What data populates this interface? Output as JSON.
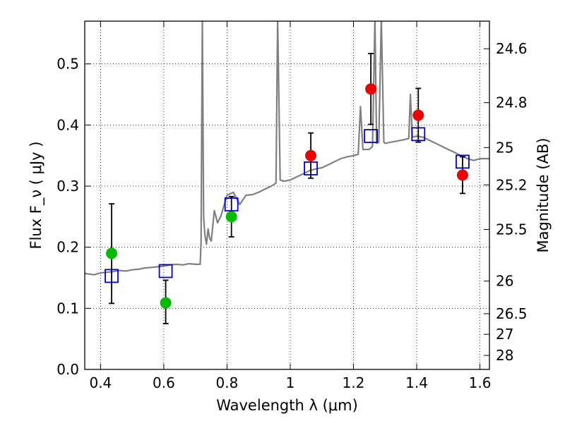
{
  "chart_data": {
    "type": "scatter",
    "xlabel": "Wavelength  λ (μm)",
    "ylabel": "Flux  F_ν  ( μJy )",
    "y2label": "Magnitude (AB)",
    "xlim": [
      0.35,
      1.63
    ],
    "ylim": [
      0.0,
      0.57
    ],
    "grid": true,
    "x_ticks": [
      "0.4",
      "0.6",
      "0.8",
      "1",
      "1.2",
      "1.4",
      "1.6"
    ],
    "y_ticks": [
      "0.0",
      "0.1",
      "0.2",
      "0.3",
      "0.4",
      "0.5"
    ],
    "y2_ticks": [
      "24.6",
      "24.8",
      "25",
      "25.2",
      "25.5",
      "26",
      "26.5",
      "27",
      "28"
    ],
    "colors": {
      "model_spectrum": "#808080",
      "observed_green": "#00bb00",
      "observed_red": "#ee0000",
      "model_photometry": "#0000cc",
      "error_bars": "#000000"
    },
    "series": [
      {
        "kind": "observed",
        "points": [
          {
            "x": 0.435,
            "y": 0.19,
            "yerr_low": 0.108,
            "yerr_high": 0.271,
            "color": "#00bb00"
          },
          {
            "x": 0.606,
            "y": 0.109,
            "yerr_low": 0.075,
            "yerr_high": 0.146,
            "color": "#00bb00"
          },
          {
            "x": 0.814,
            "y": 0.25,
            "yerr_low": 0.217,
            "yerr_high": 0.283,
            "color": "#00bb00"
          },
          {
            "x": 1.065,
            "y": 0.35,
            "yerr_low": 0.313,
            "yerr_high": 0.387,
            "color": "#ee0000"
          },
          {
            "x": 1.255,
            "y": 0.459,
            "yerr_low": 0.401,
            "yerr_high": 0.517,
            "color": "#ee0000"
          },
          {
            "x": 1.405,
            "y": 0.416,
            "yerr_low": 0.372,
            "yerr_high": 0.46,
            "color": "#ee0000"
          },
          {
            "x": 1.545,
            "y": 0.318,
            "yerr_low": 0.288,
            "yerr_high": 0.348,
            "color": "#ee0000"
          }
        ]
      },
      {
        "kind": "model_photometry",
        "points": [
          {
            "x": 0.435,
            "y": 0.153
          },
          {
            "x": 0.606,
            "y": 0.161
          },
          {
            "x": 0.814,
            "y": 0.27
          },
          {
            "x": 1.065,
            "y": 0.329
          },
          {
            "x": 1.255,
            "y": 0.382
          },
          {
            "x": 1.405,
            "y": 0.385
          },
          {
            "x": 1.545,
            "y": 0.34
          }
        ]
      },
      {
        "kind": "model_spectrum",
        "points": [
          [
            0.35,
            0.157
          ],
          [
            0.38,
            0.155
          ],
          [
            0.4,
            0.158
          ],
          [
            0.42,
            0.159
          ],
          [
            0.44,
            0.16
          ],
          [
            0.46,
            0.162
          ],
          [
            0.48,
            0.161
          ],
          [
            0.5,
            0.163
          ],
          [
            0.52,
            0.164
          ],
          [
            0.54,
            0.166
          ],
          [
            0.56,
            0.167
          ],
          [
            0.58,
            0.168
          ],
          [
            0.6,
            0.169
          ],
          [
            0.62,
            0.171
          ],
          [
            0.64,
            0.172
          ],
          [
            0.66,
            0.171
          ],
          [
            0.68,
            0.173
          ],
          [
            0.7,
            0.172
          ],
          [
            0.715,
            0.172
          ],
          [
            0.718,
            0.207
          ],
          [
            0.722,
            0.575
          ],
          [
            0.726,
            0.25
          ],
          [
            0.73,
            0.22
          ],
          [
            0.735,
            0.205
          ],
          [
            0.74,
            0.23
          ],
          [
            0.745,
            0.215
          ],
          [
            0.75,
            0.21
          ],
          [
            0.76,
            0.26
          ],
          [
            0.77,
            0.24
          ],
          [
            0.78,
            0.25
          ],
          [
            0.8,
            0.285
          ],
          [
            0.82,
            0.29
          ],
          [
            0.84,
            0.27
          ],
          [
            0.86,
            0.285
          ],
          [
            0.88,
            0.286
          ],
          [
            0.9,
            0.29
          ],
          [
            0.92,
            0.295
          ],
          [
            0.94,
            0.3
          ],
          [
            0.955,
            0.305
          ],
          [
            0.96,
            0.575
          ],
          [
            0.968,
            0.31
          ],
          [
            0.98,
            0.308
          ],
          [
            1.0,
            0.31
          ],
          [
            1.02,
            0.315
          ],
          [
            1.04,
            0.32
          ],
          [
            1.06,
            0.325
          ],
          [
            1.08,
            0.328
          ],
          [
            1.1,
            0.33
          ],
          [
            1.12,
            0.335
          ],
          [
            1.14,
            0.34
          ],
          [
            1.16,
            0.345
          ],
          [
            1.18,
            0.348
          ],
          [
            1.2,
            0.35
          ],
          [
            1.215,
            0.352
          ],
          [
            1.222,
            0.43
          ],
          [
            1.23,
            0.36
          ],
          [
            1.25,
            0.36
          ],
          [
            1.26,
            0.365
          ],
          [
            1.268,
            0.575
          ],
          [
            1.273,
            0.37
          ],
          [
            1.28,
            0.372
          ],
          [
            1.288,
            0.575
          ],
          [
            1.296,
            0.372
          ],
          [
            1.3,
            0.37
          ],
          [
            1.32,
            0.372
          ],
          [
            1.34,
            0.374
          ],
          [
            1.36,
            0.376
          ],
          [
            1.375,
            0.378
          ],
          [
            1.38,
            0.45
          ],
          [
            1.386,
            0.38
          ],
          [
            1.4,
            0.382
          ],
          [
            1.42,
            0.38
          ],
          [
            1.44,
            0.375
          ],
          [
            1.46,
            0.37
          ],
          [
            1.48,
            0.365
          ],
          [
            1.5,
            0.36
          ],
          [
            1.52,
            0.355
          ],
          [
            1.54,
            0.35
          ],
          [
            1.56,
            0.345
          ],
          [
            1.58,
            0.342
          ],
          [
            1.6,
            0.345
          ],
          [
            1.63,
            0.345
          ]
        ]
      }
    ]
  }
}
